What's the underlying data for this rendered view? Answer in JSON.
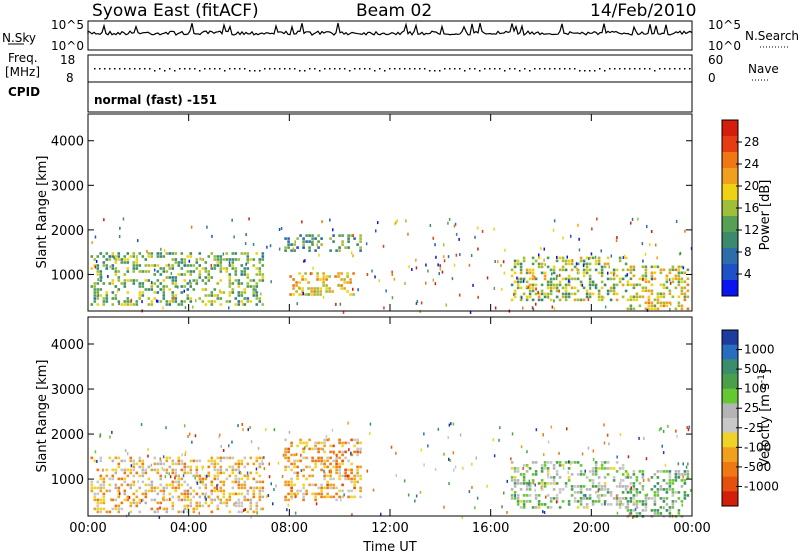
{
  "header": {
    "station": "Syowa East (fitACF)",
    "beam": "Beam 02",
    "date": "14/Feb/2010"
  },
  "top_panels": {
    "nsky_label": "N.Sky",
    "nsky_ticks": [
      "10^5",
      "10^0"
    ],
    "nsearch_label": "N.Search",
    "nsearch_ticks": [
      "10^5",
      "10^0"
    ],
    "freq_label_1": "Freq.",
    "freq_label_2": "[MHz]",
    "freq_ticks": [
      "18",
      "8"
    ],
    "nave_label": "Nave",
    "nave_ticks": [
      "60",
      "0"
    ],
    "cpid_label": "CPID",
    "cpid_value": "normal (fast) -151"
  },
  "chart_data": [
    {
      "type": "heatmap",
      "name": "power",
      "ylabel": "Slant Range [km]",
      "ylim": [
        180,
        4600
      ],
      "y_ticks": [
        "1000",
        "2000",
        "3000",
        "4000"
      ],
      "x_ticks": [
        "00:00",
        "04:00",
        "08:00",
        "12:00",
        "16:00",
        "20:00",
        "00:00"
      ],
      "colorbar": {
        "label": "Power [dB]",
        "range": [
          0,
          32
        ],
        "ticks": [
          "4",
          "8",
          "12",
          "16",
          "20",
          "24",
          "28"
        ],
        "colors": [
          "#0a14f0",
          "#1e50c8",
          "#2d6eaa",
          "#3c8a6e",
          "#55a055",
          "#a0be37",
          "#f0d214",
          "#f0a01e",
          "#f07814",
          "#e63c14",
          "#d21e0a"
        ]
      },
      "echo_regions": [
        {
          "t_start": 0.1,
          "t_end": 6.9,
          "r_min": 300,
          "r_max": 1500,
          "power": 14
        },
        {
          "t_start": 7.8,
          "t_end": 10.8,
          "r_min": 1500,
          "r_max": 1900,
          "power": 11
        },
        {
          "t_start": 8.0,
          "t_end": 10.6,
          "r_min": 550,
          "r_max": 1050,
          "power": 20
        },
        {
          "t_start": 16.8,
          "t_end": 21.4,
          "r_min": 400,
          "r_max": 1400,
          "power": 16
        },
        {
          "t_start": 21.4,
          "t_end": 23.8,
          "r_min": 200,
          "r_max": 1200,
          "power": 18
        }
      ]
    },
    {
      "type": "heatmap",
      "name": "velocity",
      "ylabel": "Slant Range [km]",
      "xlabel": "Time UT",
      "ylim": [
        180,
        4600
      ],
      "y_ticks": [
        "1000",
        "2000",
        "3000",
        "4000"
      ],
      "x_ticks": [
        "00:00",
        "04:00",
        "08:00",
        "12:00",
        "16:00",
        "20:00",
        "00:00"
      ],
      "colorbar": {
        "label": "Velocity [m s^-1]",
        "range": [
          -1200,
          1200
        ],
        "ticks": [
          "1000",
          "500",
          "100",
          "25",
          "-25",
          "-100",
          "-500",
          "-1000"
        ],
        "colors": [
          "#1e3ca0",
          "#286ebe",
          "#3c8c6e",
          "#4aa04a",
          "#64c832",
          "#b4b4b4",
          "#c8c8c8",
          "#f0d228",
          "#f0a01e",
          "#f07814",
          "#e6500f",
          "#d21e0a"
        ]
      },
      "echo_regions": [
        {
          "t_start": 0.1,
          "t_end": 6.9,
          "r_min": 300,
          "r_max": 1500,
          "velocity": -300
        },
        {
          "t_start": 7.8,
          "t_end": 10.8,
          "r_min": 550,
          "r_max": 1900,
          "velocity": -450
        },
        {
          "t_start": 16.8,
          "t_end": 21.4,
          "r_min": 400,
          "r_max": 1400,
          "velocity": 150
        },
        {
          "t_start": 21.4,
          "t_end": 23.8,
          "r_min": 200,
          "r_max": 1200,
          "velocity": 300
        }
      ]
    }
  ]
}
